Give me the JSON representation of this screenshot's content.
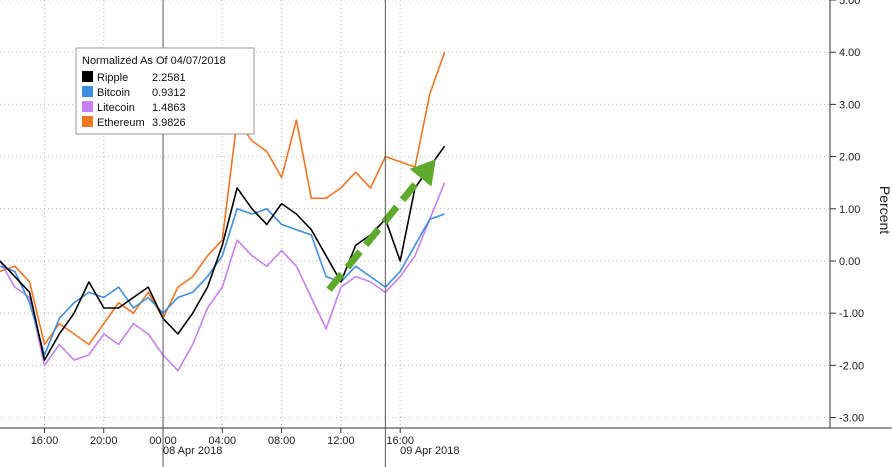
{
  "chart_data": {
    "type": "line",
    "legend": {
      "title": "Normalized As Of 04/07/2018",
      "placement": "top-left"
    },
    "ylabel": "Percent",
    "ylim": [
      -3.2,
      5.0
    ],
    "y_ticks": [
      5.0,
      4.0,
      3.0,
      2.0,
      1.0,
      0.0,
      -1.0,
      -2.0,
      -3.0
    ],
    "y_tick_labels": [
      "5.00",
      "4.00",
      "3.00",
      "2.00",
      "1.00",
      "0.00",
      "-1.00",
      "-2.00",
      "-3.00"
    ],
    "xlim": [
      "2018-04-07 13:00",
      "2018-04-09 21:00"
    ],
    "x_ticks": [
      "2018-04-07 16:00",
      "2018-04-07 20:00",
      "2018-04-08 00:00",
      "2018-04-08 04:00",
      "2018-04-08 08:00",
      "2018-04-08 12:00",
      "2018-04-08 16:00"
    ],
    "x_tick_labels": [
      "16:00",
      "20:00",
      "00:00",
      "04:00",
      "08:00",
      "12:00",
      "16:00"
    ],
    "date_labels": [
      {
        "text": "08 Apr 2018",
        "x": "2018-04-08 02:00"
      },
      {
        "text": "09 Apr 2018",
        "x": "2018-04-08 18:00"
      }
    ],
    "day_boundaries": [
      "2018-04-08 00:00",
      "2018-04-08 15:00"
    ],
    "grid": true,
    "x_hours": [
      13,
      14,
      15,
      16,
      17,
      18,
      19,
      20,
      21,
      22,
      23,
      24,
      25,
      26,
      27,
      28,
      29,
      30,
      31,
      32,
      33,
      34,
      35,
      36,
      37,
      38,
      39,
      40,
      41,
      42,
      43
    ],
    "series": [
      {
        "name": "Ripple",
        "last": "2.2581",
        "color": "#000000",
        "values": [
          0.0,
          -0.3,
          -0.6,
          -1.9,
          -1.4,
          -1.0,
          -0.4,
          -0.9,
          -0.9,
          -0.7,
          -0.5,
          -1.1,
          -1.4,
          -1.0,
          -0.5,
          0.3,
          1.4,
          1.0,
          0.7,
          1.1,
          0.9,
          0.6,
          0.1,
          -0.4,
          0.3,
          0.5,
          0.8,
          0.0,
          1.4,
          1.8,
          2.2
        ]
      },
      {
        "name": "Bitcoin",
        "last": "0.9312",
        "color": "#3d8fdf",
        "values": [
          -0.1,
          -0.2,
          -0.8,
          -1.8,
          -1.1,
          -0.8,
          -0.6,
          -0.7,
          -0.5,
          -0.9,
          -0.7,
          -1.0,
          -0.7,
          -0.6,
          -0.3,
          0.1,
          1.0,
          0.9,
          1.0,
          0.7,
          0.6,
          0.5,
          -0.3,
          -0.4,
          -0.1,
          -0.3,
          -0.5,
          -0.2,
          0.3,
          0.8,
          0.9
        ]
      },
      {
        "name": "Litecoin",
        "last": "1.4863",
        "color": "#c880f0",
        "values": [
          0.0,
          -0.5,
          -0.7,
          -2.0,
          -1.6,
          -1.9,
          -1.8,
          -1.4,
          -1.6,
          -1.2,
          -1.4,
          -1.8,
          -2.1,
          -1.6,
          -0.9,
          -0.5,
          0.4,
          0.1,
          -0.1,
          0.2,
          -0.1,
          -0.7,
          -1.3,
          -0.5,
          -0.3,
          -0.4,
          -0.6,
          -0.3,
          0.1,
          0.8,
          1.5
        ]
      },
      {
        "name": "Ethereum",
        "last": "3.9826",
        "color": "#f27524",
        "values": [
          -0.2,
          -0.1,
          -0.4,
          -1.6,
          -1.2,
          -1.4,
          -1.6,
          -1.2,
          -0.8,
          -1.0,
          -0.6,
          -1.1,
          -0.5,
          -0.3,
          0.1,
          0.4,
          2.7,
          2.3,
          2.1,
          1.6,
          2.7,
          1.2,
          1.2,
          1.4,
          1.7,
          1.4,
          2.0,
          1.9,
          1.8,
          3.2,
          4.0
        ]
      }
    ],
    "annotation": {
      "type": "dashed-arrow",
      "color": "#5faa2c",
      "from": {
        "x": 35.2,
        "y": -0.55
      },
      "to": {
        "x": 42.4,
        "y": 1.95
      }
    }
  }
}
